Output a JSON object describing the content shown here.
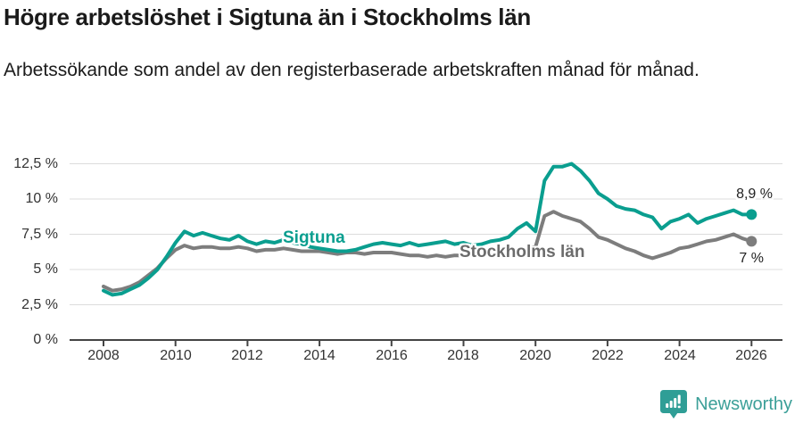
{
  "header": {
    "title": "Högre arbetslöshet i Sigtuna än i Stockholms län",
    "subtitle": "Arbetssökande som andel av den registerbaserade arbetskraften månad för månad."
  },
  "footer": {
    "brand": "Newsworthy",
    "logo_icon": "bar-chart-speech-bubble-icon"
  },
  "colors": {
    "sigtuna_teal": "#0a9e8f",
    "stockholm_gray": "#7d7d7d",
    "grid": "#dcdcdc",
    "axis": "#444444",
    "brand_teal": "#3b9f98"
  },
  "chart_data": {
    "type": "line",
    "title": "Högre arbetslöshet i Sigtuna än i Stockholms län",
    "subtitle": "Arbetssökande som andel av den registerbaserade arbetskraften månad för månad.",
    "unit": "%",
    "grid": "horizontal",
    "legend_position": "inline-labels",
    "x_start": 2008,
    "x_step": 0.25,
    "xlim": [
      2007.1,
      2026.9
    ],
    "ylim": [
      0,
      13.7
    ],
    "x_ticks": [
      {
        "value": 2008,
        "label": "2008"
      },
      {
        "value": 2010,
        "label": "2010"
      },
      {
        "value": 2012,
        "label": "2012"
      },
      {
        "value": 2014,
        "label": "2014"
      },
      {
        "value": 2016,
        "label": "2016"
      },
      {
        "value": 2018,
        "label": "2018"
      },
      {
        "value": 2020,
        "label": "2020"
      },
      {
        "value": 2022,
        "label": "2022"
      },
      {
        "value": 2024,
        "label": "2024"
      },
      {
        "value": 2026,
        "label": "2026"
      }
    ],
    "y_ticks": [
      {
        "value": 12.5,
        "label": "12,5 %"
      },
      {
        "value": 10,
        "label": "10 %"
      },
      {
        "value": 7.5,
        "label": "7,5 %"
      },
      {
        "value": 5,
        "label": "5 %"
      },
      {
        "value": 2.5,
        "label": "2,5 %"
      },
      {
        "value": 0,
        "label": "0 %"
      }
    ],
    "series": [
      {
        "name": "Sigtuna",
        "color": "#0a9e8f",
        "end_label": "8,9 %",
        "end_value": 8.9,
        "values": [
          3.5,
          3.2,
          3.3,
          3.6,
          3.9,
          4.4,
          5.0,
          5.9,
          6.9,
          7.7,
          7.4,
          7.6,
          7.4,
          7.2,
          7.1,
          7.4,
          7.0,
          6.8,
          7.0,
          6.9,
          7.1,
          6.9,
          6.8,
          6.6,
          6.5,
          6.4,
          6.3,
          6.3,
          6.4,
          6.6,
          6.8,
          6.9,
          6.8,
          6.7,
          6.9,
          6.7,
          6.8,
          6.9,
          7.0,
          6.8,
          6.9,
          6.7,
          6.8,
          7.0,
          7.1,
          7.3,
          7.9,
          8.3,
          7.7,
          11.3,
          12.3,
          12.3,
          12.5,
          12.0,
          11.3,
          10.4,
          10.0,
          9.5,
          9.3,
          9.2,
          8.9,
          8.7,
          7.9,
          8.4,
          8.6,
          8.9,
          8.3,
          8.6,
          8.8,
          9.0,
          9.2,
          8.9,
          8.9
        ]
      },
      {
        "name": "Stockholms län",
        "color": "#7d7d7d",
        "end_label": "7 %",
        "end_value": 7.0,
        "values": [
          3.8,
          3.5,
          3.6,
          3.8,
          4.1,
          4.6,
          5.1,
          5.8,
          6.4,
          6.7,
          6.5,
          6.6,
          6.6,
          6.5,
          6.5,
          6.6,
          6.5,
          6.3,
          6.4,
          6.4,
          6.5,
          6.4,
          6.3,
          6.3,
          6.3,
          6.2,
          6.1,
          6.2,
          6.2,
          6.1,
          6.2,
          6.2,
          6.2,
          6.1,
          6.0,
          6.0,
          5.9,
          6.0,
          5.9,
          6.0,
          6.0,
          6.0,
          6.1,
          6.1,
          6.2,
          6.3,
          6.4,
          6.5,
          6.6,
          8.8,
          9.1,
          8.8,
          8.6,
          8.4,
          7.9,
          7.3,
          7.1,
          6.8,
          6.5,
          6.3,
          6.0,
          5.8,
          6.0,
          6.2,
          6.5,
          6.6,
          6.8,
          7.0,
          7.1,
          7.3,
          7.5,
          7.2,
          7.0
        ]
      }
    ]
  }
}
